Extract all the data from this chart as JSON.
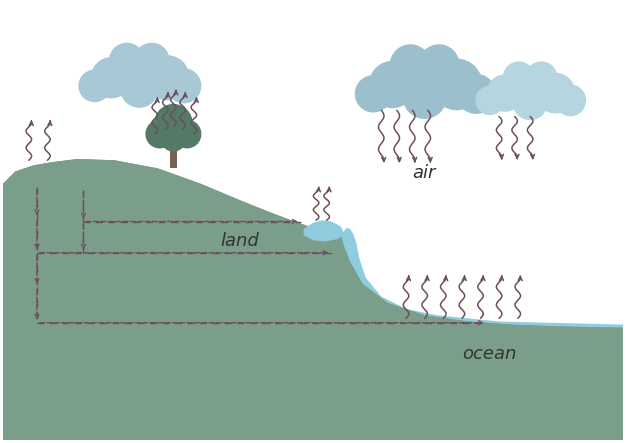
{
  "bg_color": "#ffffff",
  "land_color": "#7a9e8a",
  "ocean_color": "#90cce0",
  "arrow_color": "#6b4f5a",
  "text_color": "#333333",
  "label_land": "land",
  "label_air": "air",
  "label_ocean": "ocean",
  "cloud_color1": "#a8c8d5",
  "cloud_color2": "#b8d5df",
  "figsize": [
    6.26,
    4.43
  ],
  "dpi": 100
}
